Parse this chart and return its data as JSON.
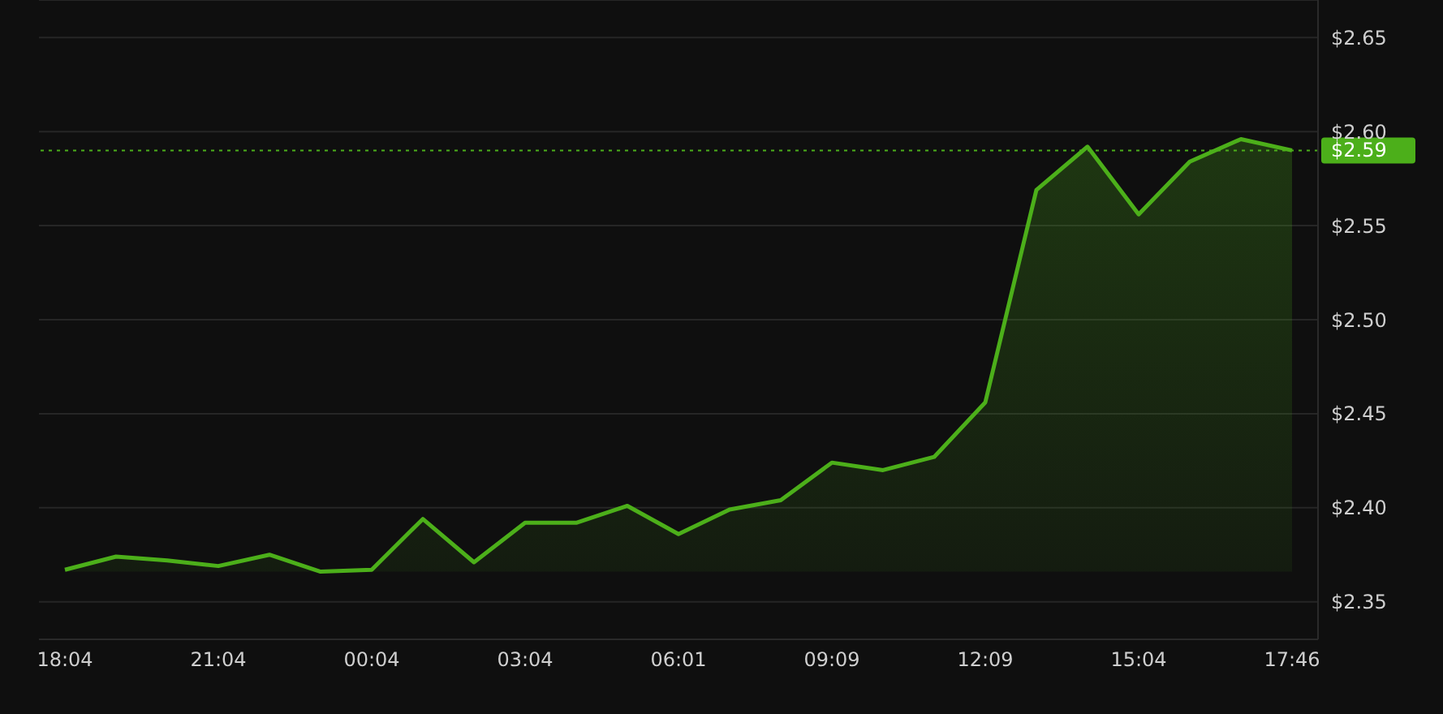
{
  "chart_data": {
    "type": "area",
    "categories": [
      "18:04",
      null,
      null,
      "21:04",
      null,
      null,
      "00:04",
      null,
      null,
      "03:04",
      null,
      null,
      "06:01",
      null,
      null,
      "09:09",
      null,
      null,
      "12:09",
      null,
      null,
      "15:04",
      null,
      null,
      "17:46"
    ],
    "series": [
      {
        "color": "#4caf1a",
        "values": [
          2.367,
          2.374,
          2.372,
          2.369,
          2.375,
          2.366,
          2.367,
          2.394,
          2.371,
          2.392,
          2.392,
          2.401,
          2.386,
          2.399,
          2.404,
          2.424,
          2.42,
          2.427,
          2.456,
          2.569,
          2.592,
          2.556,
          2.584,
          2.596,
          2.59
        ]
      }
    ],
    "ylim": [
      2.33,
      2.67
    ],
    "yticks": [
      {
        "value": 2.35,
        "label": "$2.35"
      },
      {
        "value": 2.4,
        "label": "$2.40"
      },
      {
        "value": 2.45,
        "label": "$2.45"
      },
      {
        "value": 2.5,
        "label": "$2.50"
      },
      {
        "value": 2.55,
        "label": "$2.55"
      },
      {
        "value": 2.6,
        "label": "$2.60"
      },
      {
        "value": 2.65,
        "label": "$2.65"
      }
    ],
    "ref_lines": [
      {
        "axis": "y",
        "value": 2.59,
        "label": "$2.59",
        "color": "#4caf1a",
        "line_style": "dotted"
      }
    ],
    "grid": "y",
    "legend": false,
    "marker": "none",
    "line_style": "solid"
  }
}
